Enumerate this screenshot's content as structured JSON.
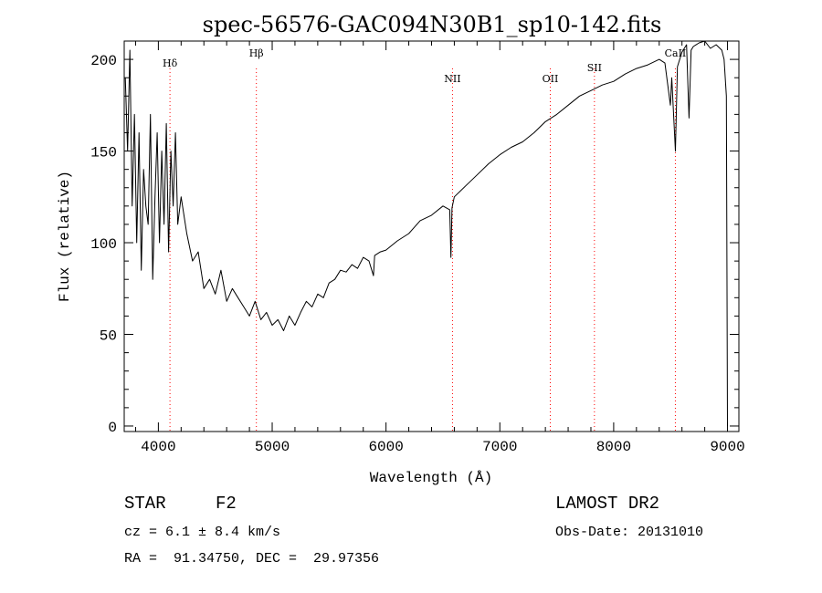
{
  "chart_data": {
    "type": "line",
    "title": "spec-56576-GAC094N30B1_sp10-142.fits",
    "xlabel": "Wavelength (Å)",
    "ylabel": "Flux (relative)",
    "xlim": [
      3700,
      9100
    ],
    "ylim": [
      -3,
      210
    ],
    "xticks": [
      "4000",
      "5000",
      "6000",
      "7000",
      "8000",
      "9000"
    ],
    "yticks": [
      "0",
      "50",
      "100",
      "150",
      "200"
    ],
    "grid": false,
    "color": "#000000",
    "line_marker_color": "#ff0000",
    "series": [
      {
        "x": [
          3710,
          3730,
          3750,
          3770,
          3790,
          3810,
          3830,
          3850,
          3870,
          3890,
          3910,
          3930,
          3950,
          3970,
          3990,
          4010,
          4030,
          4050,
          4070,
          4090,
          4110,
          4130,
          4150,
          4170,
          4200,
          4250,
          4300,
          4350,
          4400,
          4450,
          4500,
          4550,
          4600,
          4650,
          4700,
          4750,
          4800,
          4850,
          4900,
          4950,
          5000,
          5050,
          5100,
          5150,
          5200,
          5250,
          5300,
          5350,
          5400,
          5450,
          5500,
          5550,
          5600,
          5650,
          5700,
          5750,
          5800,
          5850,
          5890,
          5900,
          5950,
          6000,
          6100,
          6200,
          6300,
          6400,
          6500,
          6560,
          6570,
          6580,
          6600,
          6700,
          6800,
          6900,
          7000,
          7100,
          7200,
          7300,
          7400,
          7500,
          7600,
          7700,
          7800,
          7900,
          8000,
          8100,
          8200,
          8300,
          8400,
          8450,
          8498,
          8510,
          8542,
          8560,
          8600,
          8640,
          8662,
          8680,
          8700,
          8750,
          8800,
          8850,
          8900,
          8950,
          8970,
          8990,
          9000
        ],
        "y": [
          190,
          150,
          205,
          120,
          170,
          100,
          160,
          85,
          140,
          120,
          110,
          170,
          80,
          125,
          160,
          100,
          150,
          110,
          165,
          95,
          150,
          120,
          160,
          110,
          125,
          105,
          90,
          95,
          75,
          80,
          72,
          85,
          68,
          75,
          70,
          65,
          60,
          68,
          58,
          62,
          55,
          58,
          52,
          60,
          55,
          62,
          68,
          65,
          72,
          70,
          78,
          80,
          85,
          84,
          88,
          86,
          92,
          90,
          82,
          93,
          95,
          96,
          101,
          105,
          112,
          115,
          120,
          118,
          92,
          119,
          125,
          131,
          137,
          143,
          148,
          152,
          155,
          160,
          166,
          170,
          175,
          180,
          183,
          186,
          188,
          192,
          195,
          197,
          200,
          198,
          175,
          190,
          150,
          196,
          204,
          208,
          168,
          205,
          207,
          209,
          210,
          206,
          208,
          205,
          200,
          180,
          0
        ]
      }
    ],
    "line_labels": [
      {
        "name": "Hδ",
        "wavelength": 4102
      },
      {
        "name": "Hβ",
        "wavelength": 4861
      },
      {
        "name": "NII",
        "wavelength": 6584
      },
      {
        "name": "OII",
        "wavelength": 7443
      },
      {
        "name": "SII",
        "wavelength": 7831
      },
      {
        "name": "CaII",
        "wavelength": 8542
      }
    ]
  },
  "footer": {
    "class_label": "STAR",
    "subclass": "F2",
    "survey": "LAMOST DR2",
    "cz": "cz = 6.1 ± 8.4 km/s",
    "obs_date": "Obs-Date: 20131010",
    "coords": "RA =  91.34750, DEC =  29.97356"
  }
}
